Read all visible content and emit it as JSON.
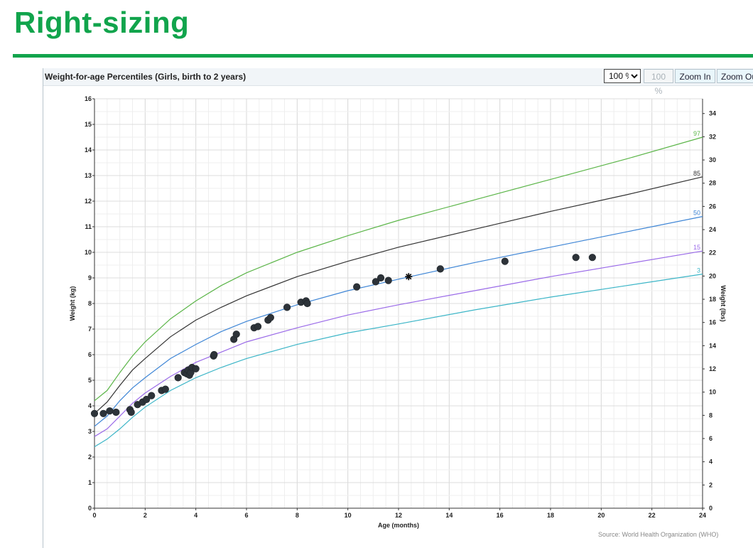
{
  "slide": {
    "title": "Right-sizing"
  },
  "panel": {
    "title": "Weight-for-age Percentiles (Girls, birth to 2 years)",
    "zoom_select": "100 %",
    "zoom_options": [
      "100 %"
    ],
    "btn_100": "100 %",
    "btn_zoom_in": "Zoom In",
    "btn_zoom_out": "Zoom Out",
    "source": "Source: World Health Organization (WHO)"
  },
  "colors": {
    "title_green": "#11a44c",
    "p97": "#5bb548",
    "p85": "#333333",
    "p50": "#3f86d6",
    "p15": "#9a6ae8",
    "p3": "#3bb5c7",
    "points": "#2d3339",
    "grid": "#e4e4e4"
  },
  "chart_data": {
    "type": "scatter",
    "title": "Weight-for-age Percentiles (Girls, birth to 2 years)",
    "xlabel": "Age (months)",
    "ylabel": "Weight (kg)",
    "y2label": "Weight (lbs)",
    "xlim": [
      0,
      24
    ],
    "ylim": [
      0,
      16
    ],
    "y2lim": [
      0,
      35.27
    ],
    "xticks": [
      0,
      2,
      4,
      6,
      8,
      10,
      12,
      14,
      16,
      18,
      20,
      22,
      24
    ],
    "yticks": [
      0,
      1,
      2,
      3,
      4,
      5,
      6,
      7,
      8,
      9,
      10,
      11,
      12,
      13,
      14,
      15,
      16
    ],
    "y2ticks": [
      0,
      2,
      4,
      6,
      8,
      10,
      12,
      14,
      16,
      18,
      20,
      22,
      24,
      26,
      28,
      30,
      32,
      34
    ],
    "grid": true,
    "series": [
      {
        "name": "97",
        "kind": "line",
        "color": "#5bb548",
        "x": [
          0,
          0.5,
          1,
          1.5,
          2,
          3,
          4,
          5,
          6,
          8,
          10,
          12,
          15,
          18,
          21,
          24
        ],
        "y": [
          4.2,
          4.6,
          5.3,
          5.95,
          6.5,
          7.4,
          8.1,
          8.7,
          9.2,
          10.0,
          10.65,
          11.25,
          12.05,
          12.85,
          13.65,
          14.5
        ]
      },
      {
        "name": "85",
        "kind": "line",
        "color": "#333333",
        "x": [
          0,
          0.5,
          1,
          1.5,
          2,
          3,
          4,
          5,
          6,
          8,
          10,
          12,
          15,
          18,
          21,
          24
        ],
        "y": [
          3.7,
          4.15,
          4.8,
          5.4,
          5.85,
          6.7,
          7.35,
          7.85,
          8.3,
          9.05,
          9.65,
          10.2,
          10.9,
          11.6,
          12.25,
          12.95
        ]
      },
      {
        "name": "50",
        "kind": "line",
        "color": "#3f86d6",
        "x": [
          0,
          0.5,
          1,
          1.5,
          2,
          3,
          4,
          5,
          6,
          8,
          10,
          12,
          15,
          18,
          21,
          24
        ],
        "y": [
          3.2,
          3.6,
          4.2,
          4.7,
          5.1,
          5.85,
          6.4,
          6.9,
          7.3,
          7.95,
          8.5,
          8.95,
          9.6,
          10.2,
          10.8,
          11.4
        ]
      },
      {
        "name": "15",
        "kind": "line",
        "color": "#9a6ae8",
        "x": [
          0,
          0.5,
          1,
          1.5,
          2,
          3,
          4,
          5,
          6,
          8,
          10,
          12,
          15,
          18,
          21,
          24
        ],
        "y": [
          2.8,
          3.1,
          3.6,
          4.1,
          4.5,
          5.15,
          5.7,
          6.1,
          6.5,
          7.05,
          7.55,
          7.95,
          8.5,
          9.05,
          9.55,
          10.05
        ]
      },
      {
        "name": "3",
        "kind": "line",
        "color": "#3bb5c7",
        "x": [
          0,
          0.5,
          1,
          1.5,
          2,
          3,
          4,
          5,
          6,
          8,
          10,
          12,
          15,
          18,
          21,
          24
        ],
        "y": [
          2.4,
          2.7,
          3.1,
          3.55,
          3.95,
          4.6,
          5.1,
          5.5,
          5.85,
          6.4,
          6.85,
          7.2,
          7.75,
          8.25,
          8.7,
          9.15
        ]
      },
      {
        "kind": "points",
        "color": "#2d3339",
        "x": [
          0,
          0.35,
          0.6,
          0.85,
          1.4,
          1.45,
          1.7,
          1.9,
          2.05,
          2.25,
          2.65,
          2.8,
          3.3,
          3.55,
          3.65,
          3.7,
          3.75,
          3.8,
          3.85,
          4.0,
          4.7,
          4.72,
          5.5,
          5.6,
          6.3,
          6.45,
          6.85,
          6.95,
          7.6,
          8.15,
          8.35,
          8.4,
          10.35,
          11.1,
          11.3,
          11.6,
          13.65,
          16.2,
          19.0,
          19.65
        ],
        "y": [
          3.7,
          3.7,
          3.8,
          3.75,
          3.85,
          3.75,
          4.05,
          4.15,
          4.25,
          4.4,
          4.6,
          4.65,
          5.1,
          5.3,
          5.25,
          5.4,
          5.2,
          5.3,
          5.5,
          5.45,
          5.95,
          6.0,
          6.6,
          6.8,
          7.05,
          7.1,
          7.35,
          7.45,
          7.85,
          8.05,
          8.1,
          8.0,
          8.65,
          8.85,
          9.0,
          8.9,
          9.35,
          9.65,
          9.8,
          9.8
        ]
      },
      {
        "kind": "marker",
        "symbol": "asterisk",
        "color": "#111111",
        "x": [
          12.4
        ],
        "y": [
          9.05
        ]
      }
    ]
  }
}
